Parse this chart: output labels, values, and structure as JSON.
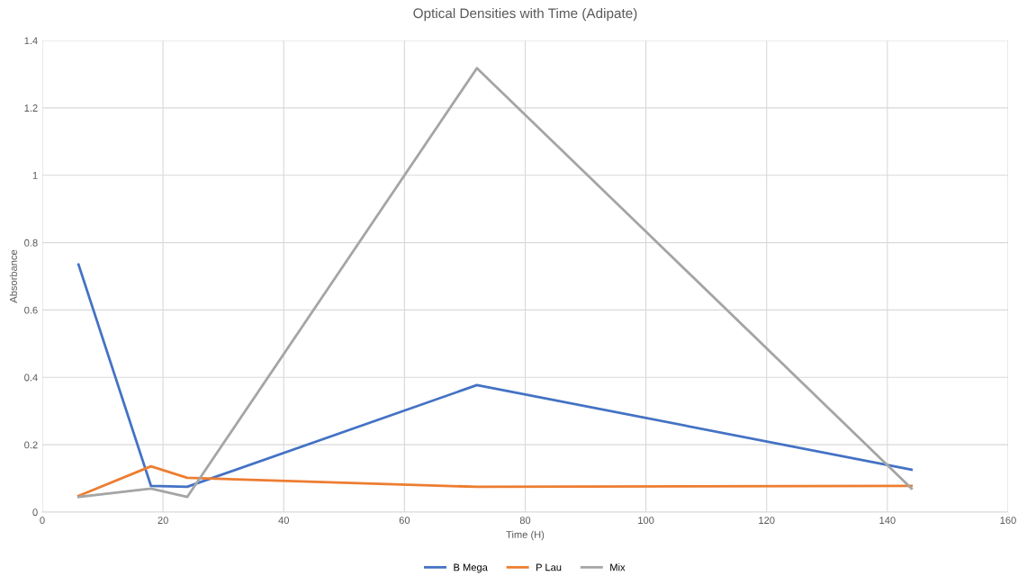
{
  "chart_data": {
    "type": "line",
    "title": "Optical Densities with Time (Adipate)",
    "xlabel": "Time (H)",
    "ylabel": "Absorbance",
    "x": [
      6,
      18,
      24,
      72,
      144
    ],
    "series": [
      {
        "name": "B Mega",
        "color": "#4472c4",
        "values": [
          0.735,
          0.078,
          0.075,
          0.377,
          0.126
        ]
      },
      {
        "name": "P Lau",
        "color": "#ed7d31",
        "values": [
          0.048,
          0.136,
          0.102,
          0.075,
          0.078
        ]
      },
      {
        "name": "Mix",
        "color": "#a5a5a5",
        "values": [
          0.045,
          0.07,
          0.045,
          1.318,
          0.07
        ]
      }
    ],
    "xlim": [
      0,
      160
    ],
    "xticks": [
      0,
      20,
      40,
      60,
      80,
      100,
      120,
      140,
      160
    ],
    "ylim": [
      0,
      1.4
    ],
    "yticks": [
      0,
      0.2,
      0.4,
      0.6,
      0.8,
      1,
      1.2,
      1.4
    ],
    "grid": true,
    "legend": "bottom",
    "marker": "none",
    "line_style": "solid"
  }
}
